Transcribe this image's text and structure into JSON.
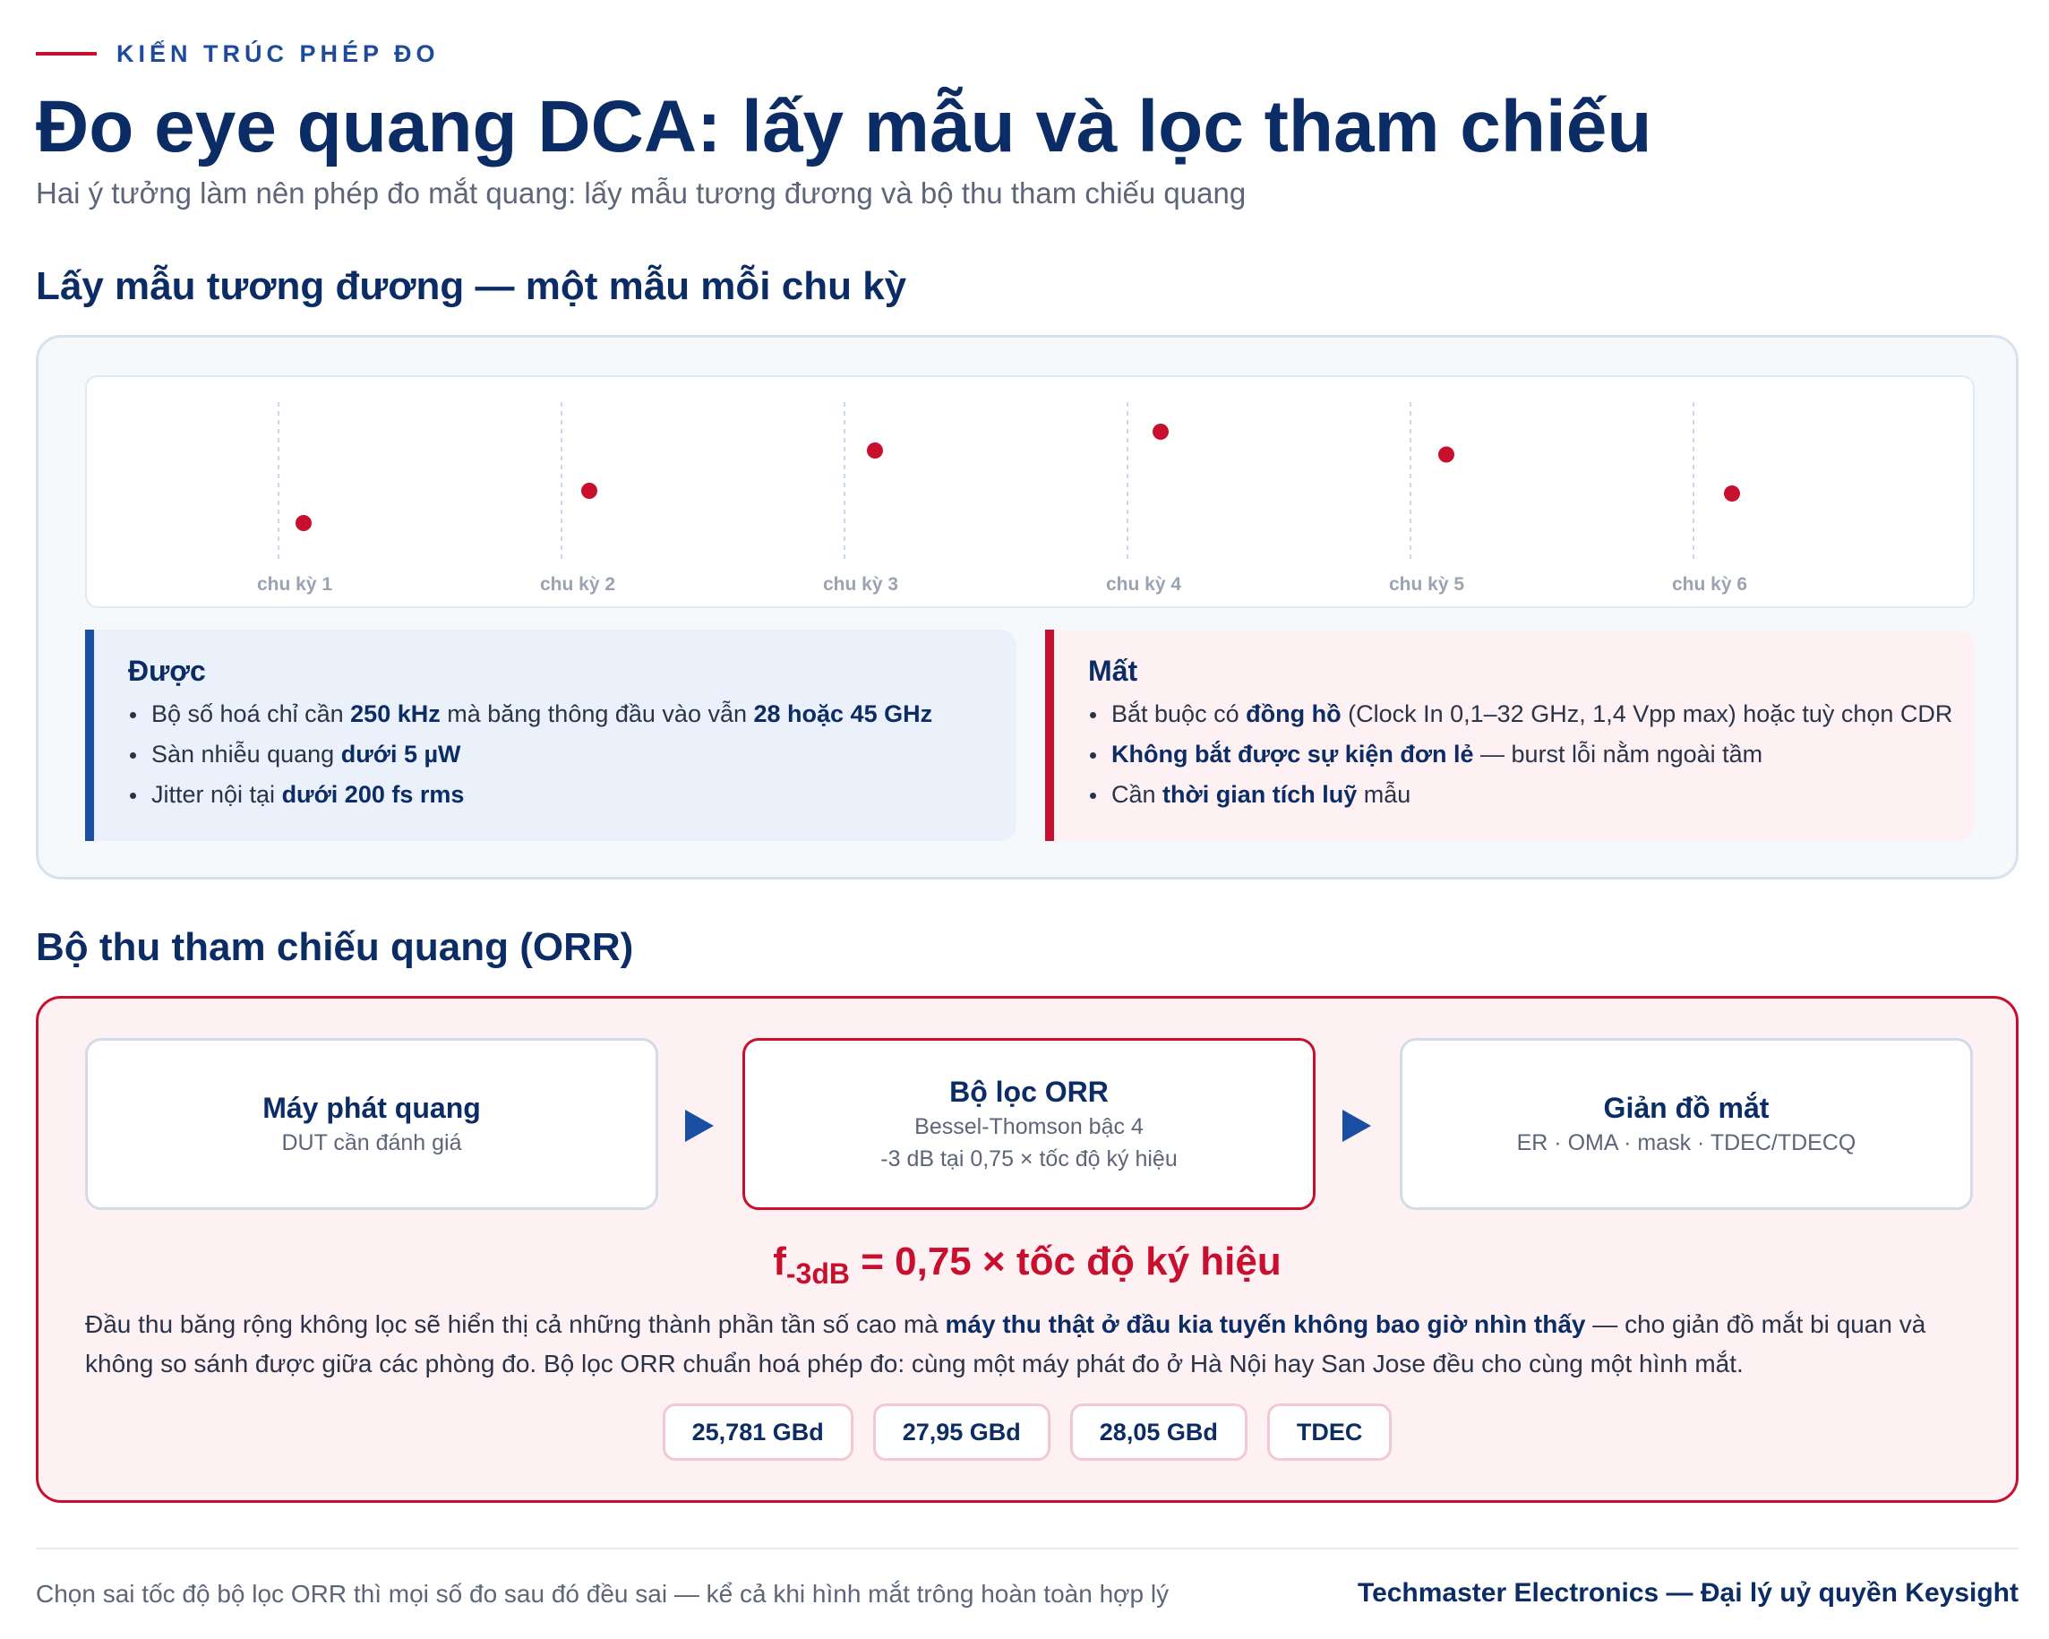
{
  "eyebrow": "KIẾN TRÚC PHÉP ĐO",
  "title": "Đo eye quang DCA: lấy mẫu và lọc tham chiếu",
  "subtitle": "Hai ý tưởng làm nên phép đo mắt quang: lấy mẫu tương đương và bộ thu tham chiếu quang",
  "section1": {
    "heading": "Lấy mẫu tương đương — một mẫu mỗi chu kỳ",
    "chart_data": {
      "type": "scatter",
      "categories": [
        "chu kỳ 1",
        "chu kỳ 2",
        "chu kỳ 3",
        "chu kỳ 4",
        "chu kỳ 5",
        "chu kỳ 6"
      ],
      "values": [
        0.18,
        0.42,
        0.72,
        0.86,
        0.69,
        0.4
      ],
      "ylim": [
        0,
        1
      ],
      "grid": "vertical-dashed",
      "point_color": "#c8102e",
      "grid_color": "#c9d7ea"
    },
    "gain": {
      "title": "Được",
      "items": [
        {
          "pre": "Bộ số hoá chỉ cần ",
          "b1": "250 kHz",
          "mid": " mà băng thông đầu vào vẫn ",
          "b2": "28 hoặc 45 GHz",
          "post": ""
        },
        {
          "pre": "Sàn nhiễu quang ",
          "b1": "dưới 5 µW",
          "mid": "",
          "b2": "",
          "post": ""
        },
        {
          "pre": "Jitter nội tại ",
          "b1": "dưới 200 fs rms",
          "mid": "",
          "b2": "",
          "post": ""
        }
      ]
    },
    "loss": {
      "title": "Mất",
      "items": [
        {
          "pre": "Bắt buộc có ",
          "b1": "đồng hồ",
          "mid": " (Clock In 0,1–32 GHz, 1,4 Vpp max) hoặc tuỳ chọn CDR",
          "b2": "",
          "post": ""
        },
        {
          "pre": "",
          "b1": "Không bắt được sự kiện đơn lẻ",
          "mid": " — burst lỗi nằm ngoài tầm",
          "b2": "",
          "post": ""
        },
        {
          "pre": "Cần ",
          "b1": "thời gian tích luỹ",
          "mid": " mẫu",
          "b2": "",
          "post": ""
        }
      ]
    }
  },
  "section2": {
    "heading": "Bộ thu tham chiếu quang (ORR)",
    "flow": {
      "tx": {
        "title": "Máy phát quang",
        "sub": "DUT cần đánh giá"
      },
      "orr": {
        "title": "Bộ lọc ORR",
        "sub1": "Bessel-Thomson bậc 4",
        "sub2": "-3 dB tại 0,75 × tốc độ ký hiệu"
      },
      "eye": {
        "title": "Giản đồ mắt",
        "sub": "ER · OMA · mask · TDEC/TDECQ"
      }
    },
    "formula": {
      "f": "f",
      "sub": "-3dB",
      "rest": " = 0,75 × tốc độ ký hiệu"
    },
    "explain": {
      "pre": "Đầu thu băng rộng không lọc sẽ hiển thị cả những thành phần tần số cao mà ",
      "bold": "máy thu thật ở đầu kia tuyến không bao giờ nhìn thấy",
      "post": " — cho giản đồ mắt bi quan và không so sánh được giữa các phòng đo. Bộ lọc ORR chuẩn hoá phép đo: cùng một máy phát đo ở Hà Nội hay San Jose đều cho cùng một hình mắt."
    },
    "chips": [
      "25,781 GBd",
      "27,95 GBd",
      "28,05 GBd",
      "TDEC"
    ]
  },
  "footer": {
    "left": "Chọn sai tốc độ bộ lọc ORR thì mọi số đo sau đó đều sai — kể cả khi hình mắt trông hoàn toàn hợp lý",
    "right": "Techmaster Electronics — Đại lý uỷ quyền Keysight"
  }
}
